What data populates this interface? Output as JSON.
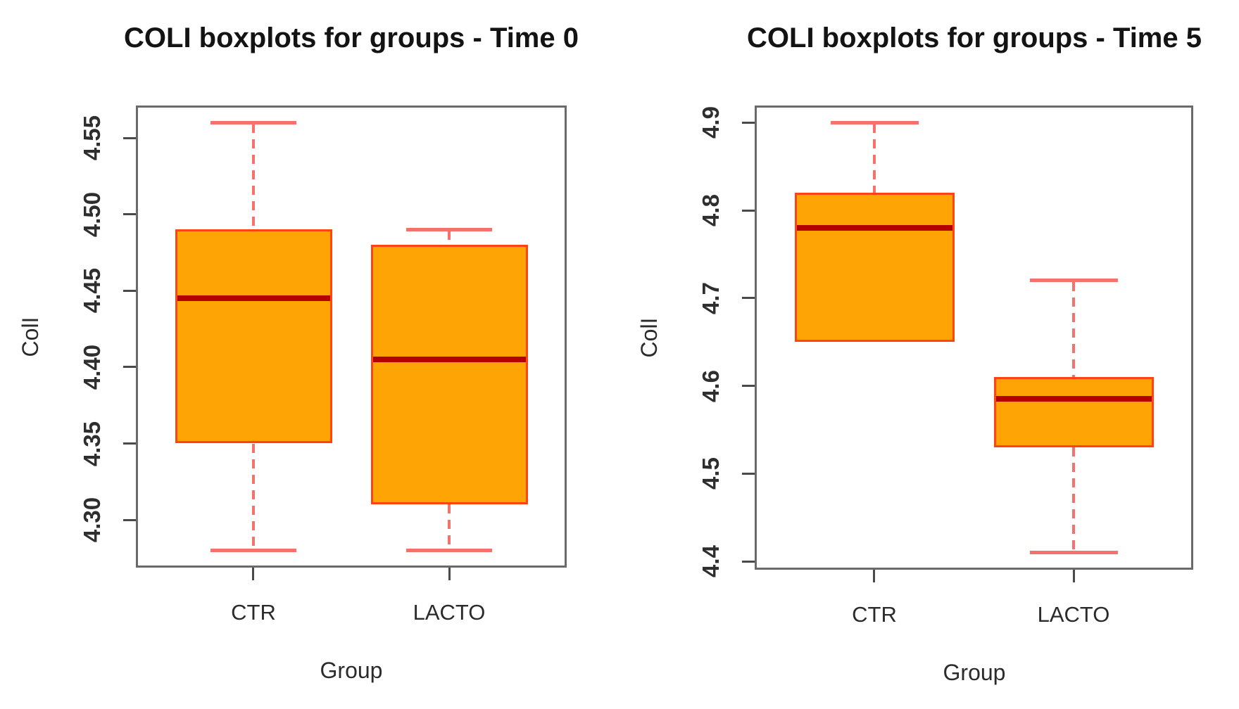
{
  "figure": {
    "background": "#ffffff"
  },
  "colors": {
    "box_fill": "#ffa404",
    "box_border": "#ff4411",
    "median": "#b30000",
    "whisker": "#f4716c",
    "axis_frame": "#6a6a6a",
    "tick_mark": "#4a4a4a",
    "title_text": "#131313",
    "label_text": "#2b2b2b"
  },
  "chart_data": [
    {
      "type": "boxplot",
      "title": "COLI boxplots for groups - Time 0",
      "xlabel": "Group",
      "ylabel": "ColI",
      "categories": [
        "CTR",
        "LACTO"
      ],
      "ylim": [
        4.2688,
        4.5712
      ],
      "grid": false,
      "legend": "none",
      "yticks": [
        {
          "value": 4.3,
          "label": "4.30"
        },
        {
          "value": 4.35,
          "label": "4.35"
        },
        {
          "value": 4.4,
          "label": "4.40"
        },
        {
          "value": 4.45,
          "label": "4.45"
        },
        {
          "value": 4.5,
          "label": "4.50"
        },
        {
          "value": 4.55,
          "label": "4.55"
        }
      ],
      "boxes": [
        {
          "category": "CTR",
          "min": 4.28,
          "q1": 4.35,
          "median": 4.445,
          "q3": 4.49,
          "max": 4.56
        },
        {
          "category": "LACTO",
          "min": 4.28,
          "q1": 4.31,
          "median": 4.405,
          "q3": 4.48,
          "max": 4.49
        }
      ]
    },
    {
      "type": "boxplot",
      "title": "COLI boxplots for groups - Time 5",
      "xlabel": "Group",
      "ylabel": "ColI",
      "categories": [
        "CTR",
        "LACTO"
      ],
      "ylim": [
        4.3904,
        4.9196
      ],
      "grid": false,
      "legend": "none",
      "yticks": [
        {
          "value": 4.4,
          "label": "4.4"
        },
        {
          "value": 4.5,
          "label": "4.5"
        },
        {
          "value": 4.6,
          "label": "4.6"
        },
        {
          "value": 4.7,
          "label": "4.7"
        },
        {
          "value": 4.8,
          "label": "4.8"
        },
        {
          "value": 4.9,
          "label": "4.9"
        }
      ],
      "boxes": [
        {
          "category": "CTR",
          "min": 4.65,
          "q1": 4.65,
          "median": 4.78,
          "q3": 4.82,
          "max": 4.9
        },
        {
          "category": "LACTO",
          "min": 4.41,
          "q1": 4.53,
          "median": 4.585,
          "q3": 4.61,
          "max": 4.72
        }
      ]
    }
  ]
}
